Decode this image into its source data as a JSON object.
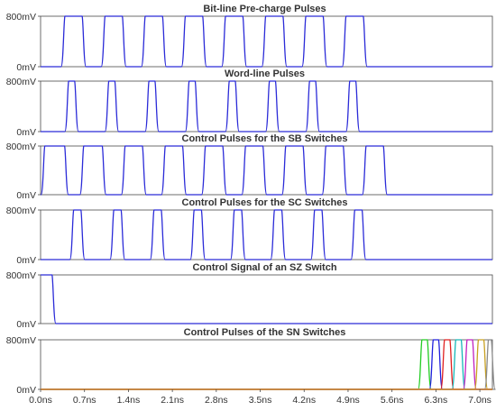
{
  "chart_data": {
    "type": "line",
    "x_unit": "ns",
    "xlim": [
      0,
      7.2
    ],
    "ylim": [
      0,
      800
    ],
    "y_unit": "mV",
    "x_ticks": [
      {
        "value": 0.0,
        "label": "0.0ns"
      },
      {
        "value": 0.7,
        "label": "0.7ns"
      },
      {
        "value": 1.4,
        "label": "1.4ns"
      },
      {
        "value": 2.1,
        "label": "2.1ns"
      },
      {
        "value": 2.8,
        "label": "2.8ns"
      },
      {
        "value": 3.5,
        "label": "3.5ns"
      },
      {
        "value": 4.2,
        "label": "4.2ns"
      },
      {
        "value": 4.9,
        "label": "4.9ns"
      },
      {
        "value": 5.6,
        "label": "5.6ns"
      },
      {
        "value": 6.3,
        "label": "6.3ns"
      },
      {
        "value": 7.0,
        "label": "7.0ns"
      }
    ],
    "y_ticks": [
      {
        "value": 800,
        "label": "800mV"
      },
      {
        "value": 0,
        "label": "0mV"
      }
    ],
    "grid": false,
    "panels": [
      {
        "title": "Bit-line Pre-charge Pulses",
        "series": [
          {
            "color": "#2b2bd8",
            "low": 0,
            "high": 800,
            "pulses": [
              [
                0.37,
                0.68
              ],
              [
                1.01,
                1.32
              ],
              [
                1.65,
                1.96
              ],
              [
                2.29,
                2.6
              ],
              [
                2.93,
                3.24
              ],
              [
                3.57,
                3.88
              ],
              [
                4.21,
                4.52
              ],
              [
                4.85,
                5.16
              ]
            ]
          }
        ]
      },
      {
        "title": "Word-line Pulses",
        "series": [
          {
            "color": "#2b2bd8",
            "low": 0,
            "high": 800,
            "pulses": [
              [
                0.43,
                0.56
              ],
              [
                1.07,
                1.2
              ],
              [
                1.71,
                1.84
              ],
              [
                2.35,
                2.48
              ],
              [
                2.99,
                3.12
              ],
              [
                3.63,
                3.76
              ],
              [
                4.27,
                4.4
              ],
              [
                4.91,
                5.04
              ]
            ]
          }
        ]
      },
      {
        "title": "Control Pulses for the SB Switches",
        "series": [
          {
            "color": "#2b2bd8",
            "low": 0,
            "high": 800,
            "pulses": [
              [
                0.05,
                0.4
              ],
              [
                0.67,
                1.0
              ],
              [
                1.33,
                1.64
              ],
              [
                1.97,
                2.28
              ],
              [
                2.61,
                2.92
              ],
              [
                3.25,
                3.56
              ],
              [
                3.89,
                4.2
              ],
              [
                4.53,
                4.84
              ],
              [
                5.17,
                5.48
              ]
            ]
          }
        ]
      },
      {
        "title": "Control Pulses for the SC Switches",
        "series": [
          {
            "color": "#2b2bd8",
            "low": 0,
            "high": 800,
            "pulses": [
              [
                0.51,
                0.66
              ],
              [
                1.15,
                1.3
              ],
              [
                1.79,
                1.94
              ],
              [
                2.43,
                2.58
              ],
              [
                3.07,
                3.22
              ],
              [
                3.71,
                3.86
              ],
              [
                4.35,
                4.5
              ],
              [
                4.99,
                5.14
              ]
            ]
          }
        ]
      },
      {
        "title": "Control Signal of an SZ Switch",
        "series": [
          {
            "color": "#2b2bd8",
            "low": 0,
            "high": 800,
            "pulses": [
              [
                0.0,
                0.2
              ]
            ]
          }
        ]
      },
      {
        "title": "Control Pulses of the SN Switches",
        "series": [
          {
            "color": "#22cc22",
            "low": 0,
            "high": 800,
            "pulses": [
              [
                6.06,
                6.18
              ]
            ]
          },
          {
            "color": "#2020dd",
            "low": 0,
            "high": 800,
            "pulses": [
              [
                6.24,
                6.36
              ]
            ]
          },
          {
            "color": "#e02020",
            "low": 0,
            "high": 800,
            "pulses": [
              [
                6.42,
                6.54
              ]
            ]
          },
          {
            "color": "#16b8b8",
            "low": 0,
            "high": 800,
            "pulses": [
              [
                6.6,
                6.72
              ]
            ]
          },
          {
            "color": "#c020c0",
            "low": 0,
            "high": 800,
            "pulses": [
              [
                6.78,
                6.9
              ]
            ]
          },
          {
            "color": "#c8a020",
            "low": 0,
            "high": 800,
            "pulses": [
              [
                6.96,
                7.08
              ]
            ]
          },
          {
            "color": "#8a8a8a",
            "low": 0,
            "high": 800,
            "pulses": [
              [
                7.12,
                7.2
              ]
            ]
          },
          {
            "color": "#e08a20",
            "low": 0,
            "high": 0,
            "pulses": []
          }
        ]
      }
    ]
  }
}
